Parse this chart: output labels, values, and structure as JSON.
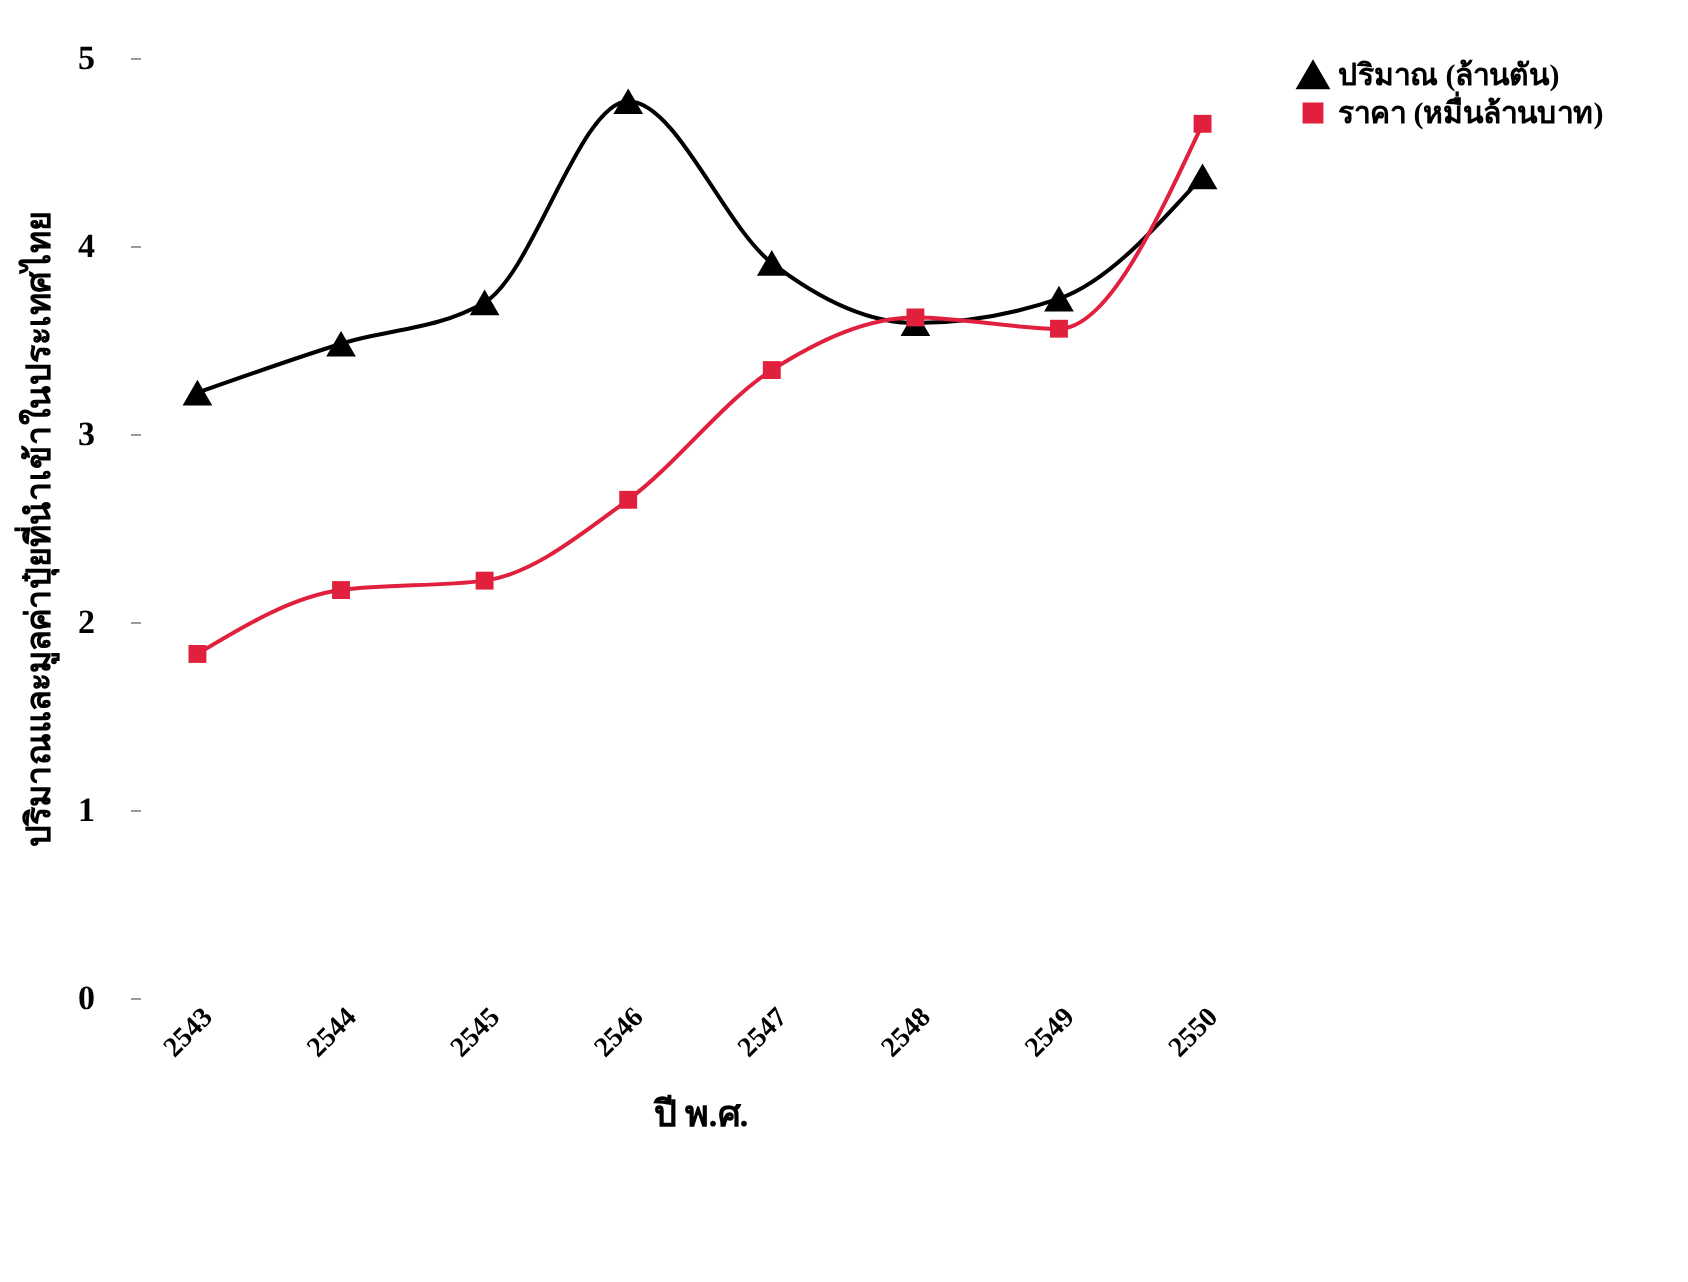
{
  "chart_data": {
    "type": "line",
    "xlabel": "ปี พ.ศ.",
    "ylabel": "ปริมาณและมูลค่าปุ๋ยที่นำเข้าในประเทศไทย",
    "categories": [
      "2543",
      "2544",
      "2545",
      "2546",
      "2547",
      "2548",
      "2549",
      "2550"
    ],
    "ylim": [
      0,
      5
    ],
    "yticks": [
      0,
      1,
      2,
      3,
      4,
      5
    ],
    "legend": "right",
    "grid": false,
    "series": [
      {
        "name": "ปริมาณ (ล้านตัน)",
        "color": "#000000",
        "marker": "triangle",
        "values": [
          3.22,
          3.48,
          3.7,
          4.77,
          3.91,
          3.59,
          3.72,
          4.37
        ]
      },
      {
        "name": "ราคา (หมื่นล้านบาท)",
        "color": "#e0203c",
        "marker": "square",
        "values": [
          1.83,
          2.17,
          2.22,
          2.65,
          3.34,
          3.62,
          3.56,
          4.65
        ]
      }
    ]
  }
}
